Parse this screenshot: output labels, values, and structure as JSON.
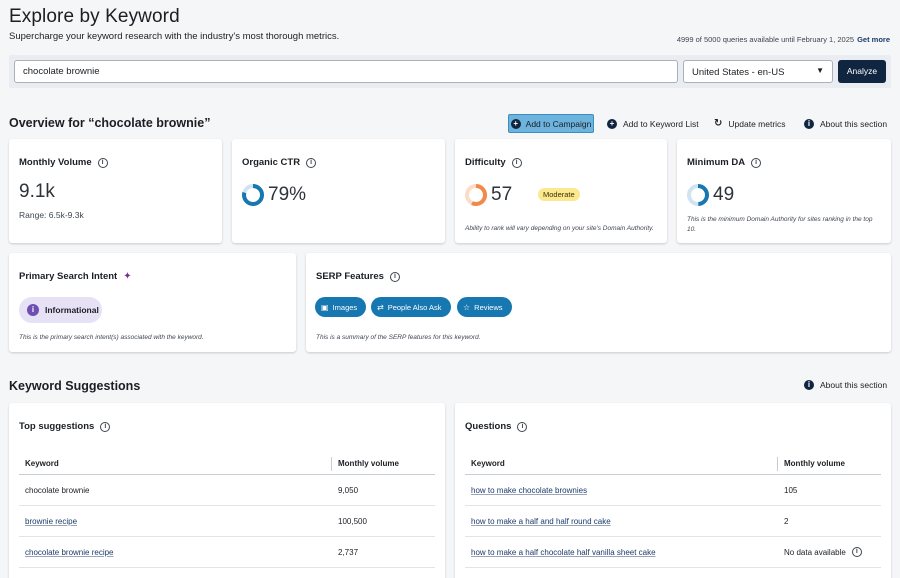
{
  "header": {
    "title": "Explore by Keyword",
    "subtitle": "Supercharge your keyword research with the industry's most thorough metrics.",
    "quota": "4999 of 5000 queries available until February 1, 2025",
    "get_more": "Get more"
  },
  "search": {
    "value": "chocolate brownie",
    "locale": "United States - en-US",
    "analyze_label": "Analyze"
  },
  "overview": {
    "title": "Overview for “chocolate brownie”",
    "add_campaign": "Add to Campaign",
    "add_keyword_list": "Add to Keyword List",
    "update_metrics": "Update metrics",
    "about_section": "About this section"
  },
  "cards": {
    "monthly_volume": {
      "title": "Monthly Volume",
      "value": "9.1k",
      "range": "Range: 6.5k-9.3k"
    },
    "organic_ctr": {
      "title": "Organic CTR",
      "value": "79%",
      "percent": 79
    },
    "difficulty": {
      "title": "Difficulty",
      "value": "57",
      "level": 57,
      "badge": "Moderate",
      "note": "Ability to rank will vary depending on your site's Domain Authority."
    },
    "minimum_da": {
      "title": "Minimum DA",
      "value": "49",
      "level": 49,
      "note": "This is the minimum Domain Authority for sites ranking in the top 10."
    }
  },
  "intent": {
    "title": "Primary Search Intent",
    "label": "Informational",
    "note": "This is the primary search intent(s) associated with the keyword."
  },
  "serp": {
    "title": "SERP Features",
    "chips": [
      "Images",
      "People Also Ask",
      "Reviews"
    ],
    "note": "This is a summary of the SERP features for this keyword."
  },
  "suggestions": {
    "title": "Keyword Suggestions",
    "about": "About this section",
    "top": {
      "title": "Top suggestions",
      "col_keyword": "Keyword",
      "col_volume": "Monthly volume",
      "rows": [
        {
          "keyword": "chocolate brownie",
          "volume": "9,050"
        },
        {
          "keyword": "brownie recipe",
          "volume": "100,500"
        },
        {
          "keyword": "chocolate brownie recipe",
          "volume": "2,737"
        }
      ]
    },
    "questions": {
      "title": "Questions",
      "col_keyword": "Keyword",
      "col_volume": "Monthly volume",
      "rows": [
        {
          "keyword": "how to make chocolate brownies",
          "volume": "105"
        },
        {
          "keyword": "how to make a half and half round cake",
          "volume": "2"
        },
        {
          "keyword": "how to make a half chocolate half vanilla sheet cake",
          "volume": "No data available"
        }
      ]
    }
  },
  "colors": {
    "accent_dark": "#0f2540",
    "campaign_blue": "#6cb3de",
    "chip_blue": "#1777b0",
    "ctr_donut": "#1777b0",
    "difficulty_donut": "#f08a4b",
    "moderate_badge": "#fbe88f",
    "intent_purple": "#6d4fb3"
  }
}
